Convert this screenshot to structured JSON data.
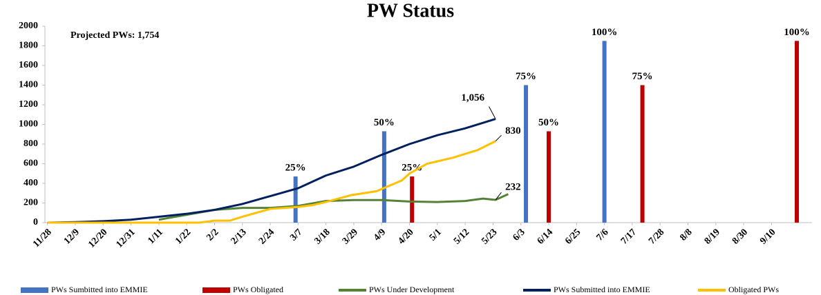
{
  "chart_data": {
    "type": "line",
    "title": "PW Status",
    "annotation": "Projected PWs: 1,754",
    "xlim": [
      -1,
      302
    ],
    "xticks": [
      {
        "value": 0,
        "label": "11/28"
      },
      {
        "value": 11,
        "label": "12/9"
      },
      {
        "value": 22,
        "label": "12/20"
      },
      {
        "value": 33,
        "label": "12/31"
      },
      {
        "value": 44,
        "label": "1/11"
      },
      {
        "value": 55,
        "label": "1/22"
      },
      {
        "value": 66,
        "label": "2/2"
      },
      {
        "value": 77,
        "label": "2/13"
      },
      {
        "value": 88,
        "label": "2/24"
      },
      {
        "value": 99,
        "label": "3/7"
      },
      {
        "value": 110,
        "label": "3/18"
      },
      {
        "value": 121,
        "label": "3/29"
      },
      {
        "value": 132,
        "label": "4/9"
      },
      {
        "value": 143,
        "label": "4/20"
      },
      {
        "value": 154,
        "label": "5/1"
      },
      {
        "value": 165,
        "label": "5/12"
      },
      {
        "value": 176,
        "label": "5/23"
      },
      {
        "value": 187,
        "label": "6/3"
      },
      {
        "value": 198,
        "label": "6/14"
      },
      {
        "value": 209,
        "label": "6/25"
      },
      {
        "value": 220,
        "label": "7/6"
      },
      {
        "value": 231,
        "label": "7/17"
      },
      {
        "value": 242,
        "label": "7/28"
      },
      {
        "value": 253,
        "label": "8/8"
      },
      {
        "value": 264,
        "label": "8/19"
      },
      {
        "value": 275,
        "label": "8/30"
      },
      {
        "value": 286,
        "label": "9/10"
      }
    ],
    "ylim": [
      0,
      2000
    ],
    "yticks": [
      0,
      200,
      400,
      600,
      800,
      1000,
      1200,
      1400,
      1600,
      1800,
      2000
    ],
    "grid": false,
    "series": [
      {
        "name": "PWs Sumbitted into EMMIE",
        "type": "bar",
        "color": "#4472c4",
        "x": [
          98,
          133,
          189,
          220
        ],
        "values": [
          470,
          930,
          1400,
          1850
        ],
        "value_labels": [
          "25%",
          "50%",
          "75%",
          "100%"
        ]
      },
      {
        "name": "PWs Obligated",
        "type": "bar",
        "color": "#c00000",
        "x": [
          144,
          198,
          235,
          296
        ],
        "values": [
          470,
          930,
          1400,
          1850
        ],
        "value_labels": [
          "25%",
          "50%",
          "75%",
          "100%"
        ]
      },
      {
        "name": "PWs Under Development",
        "type": "line",
        "color": "#548235",
        "x": [
          44,
          55,
          66,
          77,
          88,
          99,
          110,
          121,
          132,
          143,
          154,
          165,
          172,
          177,
          182
        ],
        "values": [
          30,
          80,
          130,
          150,
          150,
          170,
          220,
          230,
          230,
          215,
          210,
          220,
          245,
          232,
          290
        ],
        "value_labels": [
          null,
          null,
          null,
          null,
          null,
          null,
          null,
          null,
          null,
          null,
          null,
          null,
          null,
          "232",
          null
        ]
      },
      {
        "name": "PWs Submitted into EMMIE",
        "type": "line",
        "color": "#002060",
        "x": [
          0,
          11,
          22,
          33,
          44,
          55,
          66,
          77,
          88,
          99,
          110,
          121,
          132,
          143,
          154,
          165,
          177
        ],
        "values": [
          0,
          5,
          15,
          30,
          60,
          90,
          130,
          190,
          270,
          350,
          480,
          570,
          690,
          800,
          890,
          960,
          1056
        ],
        "value_labels": [
          null,
          null,
          null,
          null,
          null,
          null,
          null,
          null,
          null,
          null,
          null,
          null,
          null,
          null,
          null,
          null,
          "1,056"
        ]
      },
      {
        "name": "Obligated PWs",
        "type": "line",
        "color": "#ffc000",
        "x": [
          0,
          60,
          66,
          72,
          77,
          88,
          99,
          105,
          110,
          120,
          130,
          140,
          143,
          150,
          160,
          170,
          177
        ],
        "values": [
          0,
          0,
          20,
          20,
          60,
          140,
          160,
          180,
          210,
          280,
          320,
          430,
          500,
          600,
          660,
          740,
          830
        ],
        "value_labels": [
          null,
          null,
          null,
          null,
          null,
          null,
          null,
          null,
          null,
          null,
          null,
          null,
          null,
          null,
          null,
          null,
          "830"
        ]
      }
    ]
  }
}
